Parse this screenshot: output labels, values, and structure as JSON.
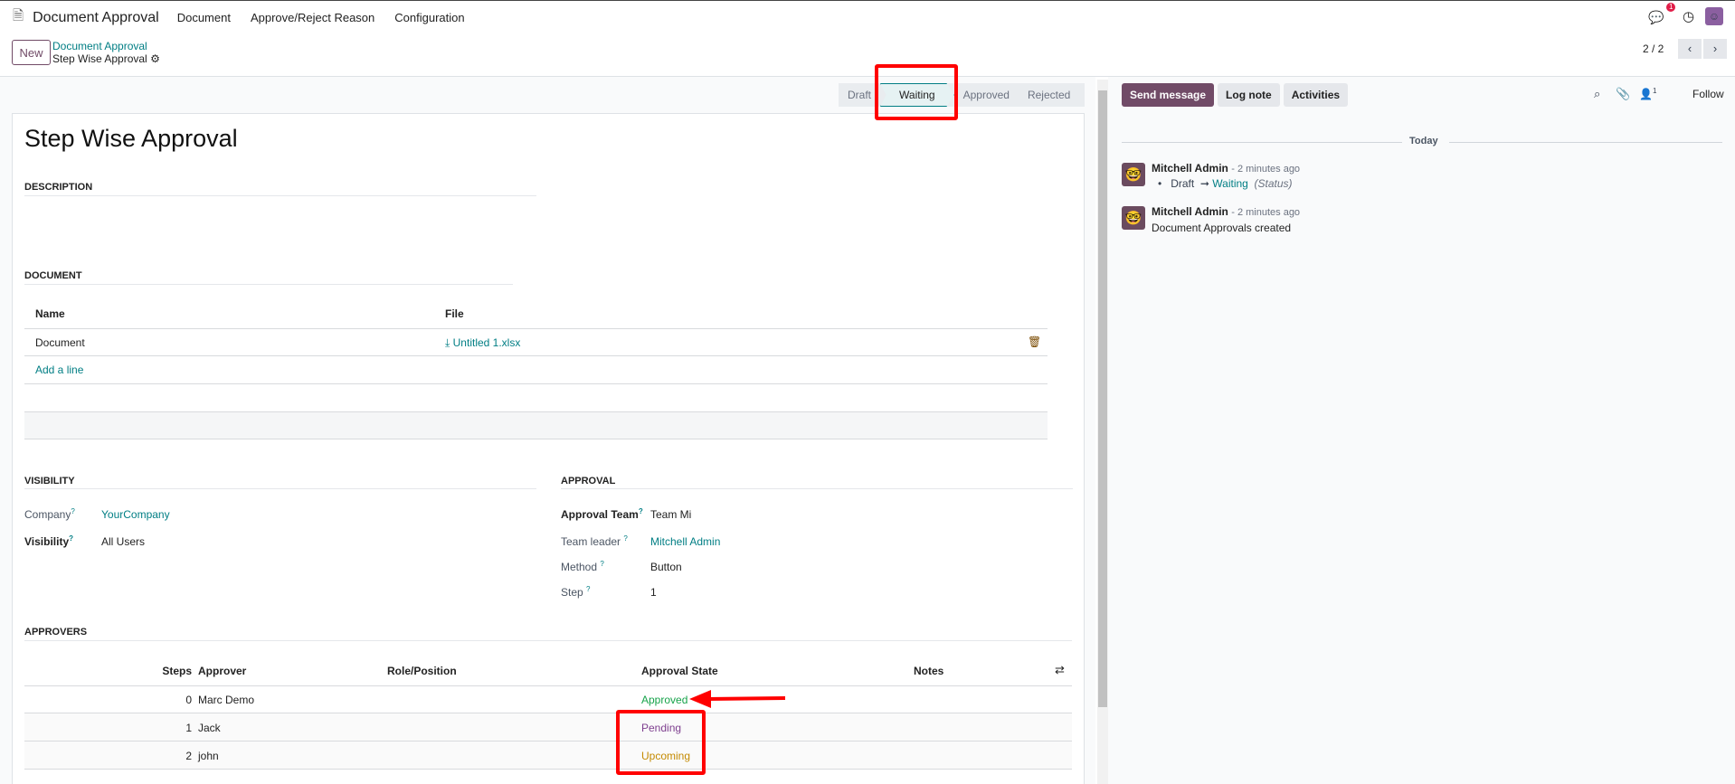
{
  "nav": {
    "app": "Document Approval",
    "menu": [
      "Document",
      "Approve/Reject Reason",
      "Configuration"
    ],
    "chat_badge": "1"
  },
  "control": {
    "new_label": "New",
    "breadcrumb_parent": "Document Approval",
    "breadcrumb_current": "Step Wise Approval",
    "pager": "2 / 2"
  },
  "statusbar": {
    "stages": [
      "Draft",
      "Waiting",
      "Approved",
      "Rejected"
    ],
    "active": "Waiting"
  },
  "form": {
    "title": "Step Wise Approval",
    "description_label": "DESCRIPTION",
    "document_label": "DOCUMENT",
    "doc_table": {
      "headers": [
        "Name",
        "File"
      ],
      "rows": [
        {
          "name": "Document",
          "file": "Untitled 1.xlsx"
        }
      ],
      "add_line": "Add a line"
    },
    "visibility": {
      "label": "VISIBILITY",
      "company_label": "Company",
      "company": "YourCompany",
      "visibility_label": "Visibility",
      "visibility": "All Users"
    },
    "approval": {
      "label": "APPROVAL",
      "team_label": "Approval Team",
      "team": "Team Mi",
      "leader_label": "Team leader",
      "leader": "Mitchell Admin",
      "method_label": "Method",
      "method": "Button",
      "step_label": "Step",
      "step": "1"
    },
    "approvers": {
      "label": "APPROVERS",
      "headers": [
        "Steps",
        "Approver",
        "Role/Position",
        "Approval State",
        "Notes"
      ],
      "rows": [
        {
          "step": "0",
          "approver": "Marc Demo",
          "state": "Approved",
          "color": "#16a34a"
        },
        {
          "step": "1",
          "approver": "Jack",
          "state": "Pending",
          "color": "#7e3f8f"
        },
        {
          "step": "2",
          "approver": "john",
          "state": "Upcoming",
          "color": "#c48a00"
        }
      ]
    }
  },
  "chatter": {
    "send": "Send message",
    "log": "Log note",
    "activities": "Activities",
    "follower_count": "1",
    "follow": "Follow",
    "today": "Today",
    "messages": [
      {
        "author": "Mitchell Admin",
        "time": "- 2 minutes ago",
        "from": "Draft",
        "to": "Waiting",
        "field": "(Status)"
      },
      {
        "author": "Mitchell Admin",
        "time": "- 2 minutes ago",
        "body": "Document Approvals created"
      }
    ]
  },
  "colors": {
    "brand": "#714b67",
    "link": "#017e84",
    "annotation": "#ff0000"
  }
}
